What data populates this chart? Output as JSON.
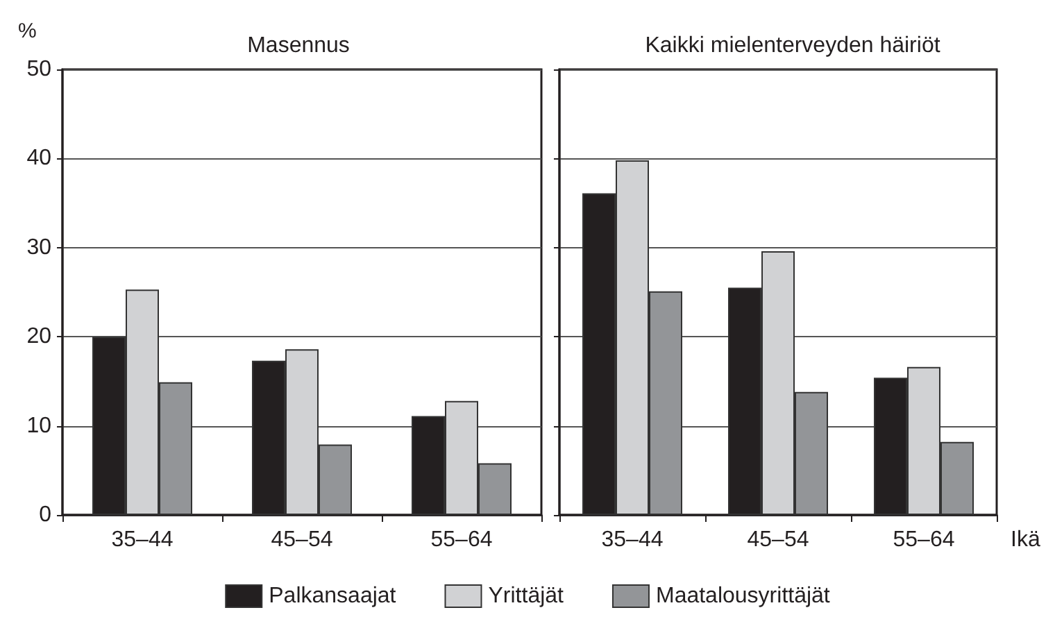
{
  "chart_data": [
    {
      "type": "bar",
      "title": "Masennus",
      "ylabel": "%",
      "categories": [
        "35–44",
        "45–54",
        "55–64"
      ],
      "series": [
        {
          "color": "#231f20",
          "values": [
            20,
            17.3,
            11.1
          ]
        },
        {
          "color": "#d1d2d4",
          "values": [
            25.3,
            18.6,
            12.8
          ]
        },
        {
          "color": "#939598",
          "values": [
            14.9,
            7.9,
            5.8
          ]
        }
      ],
      "ylim": [
        0,
        50
      ],
      "yticks": [
        0,
        10,
        20,
        30,
        40,
        50
      ],
      "grid": "y",
      "legend": false
    },
    {
      "type": "bar",
      "title": "Kaikki mielenterveyden häiriöt",
      "xlabel": "Ikä",
      "categories": [
        "35–44",
        "45–54",
        "55–64"
      ],
      "series": [
        {
          "name": "Palkansaajat",
          "color": "#231f20",
          "values": [
            36.1,
            25.5,
            15.4
          ]
        },
        {
          "name": "Yrittäjät",
          "color": "#d1d2d4",
          "values": [
            39.8,
            29.6,
            16.6
          ]
        },
        {
          "name": "Maatalousyrittäjät",
          "color": "#939598",
          "values": [
            25.1,
            13.8,
            8.2
          ]
        }
      ],
      "ylim": [
        0,
        50
      ],
      "yticks": [
        0,
        10,
        20,
        30,
        40,
        50
      ],
      "grid": "y",
      "legend": "bottom",
      "tick_labels": "x"
    }
  ]
}
